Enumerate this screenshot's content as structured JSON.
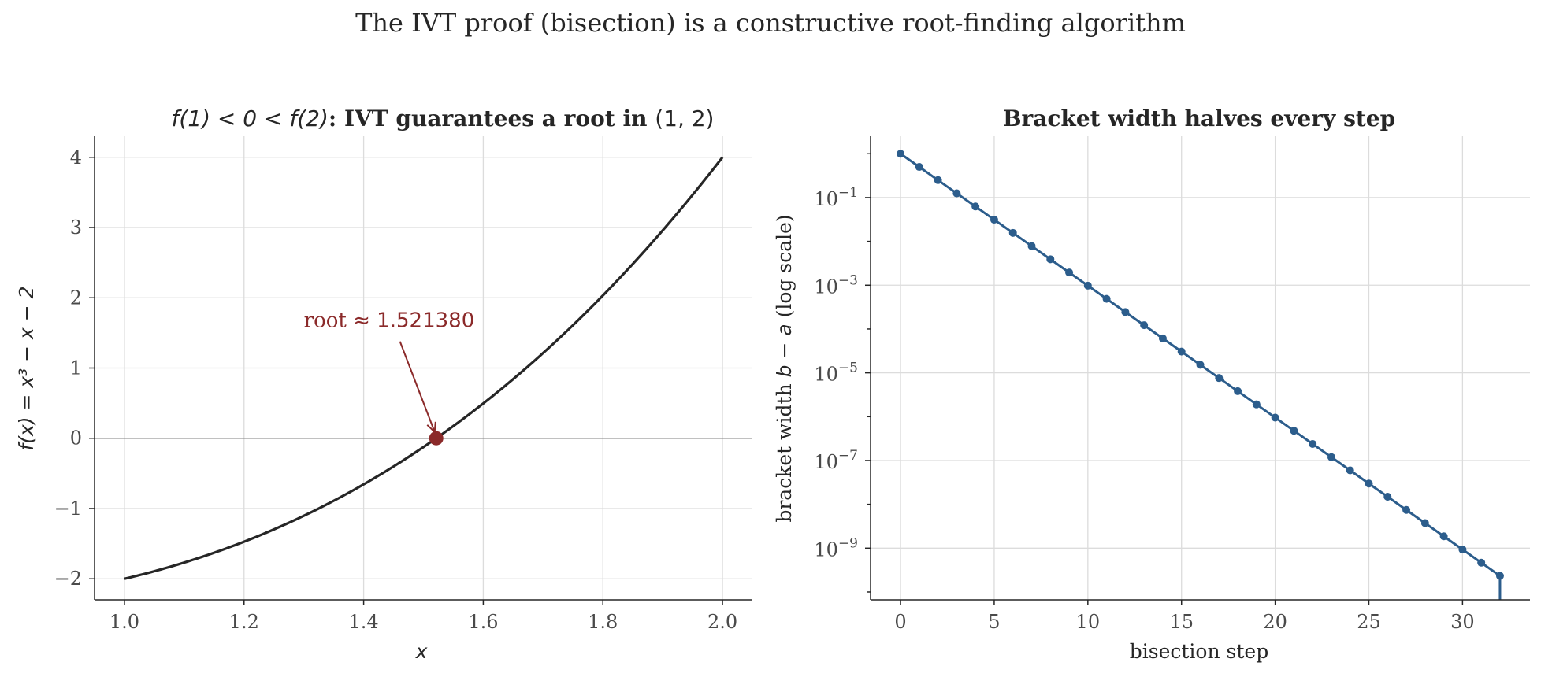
{
  "suptitle": "The IVT proof (bisection) is a constructive root-finding algorithm",
  "colors": {
    "curve": "#262626",
    "root": "#8b2a2a",
    "series": "#2c5d8c",
    "grid": "#dcdcdc"
  },
  "chart_data": [
    {
      "type": "line",
      "title_math_left": "f(1) < 0 < f(2)",
      "title_bold": ": IVT guarantees a root in ",
      "title_math_right": "(1, 2)",
      "xlabel": "x",
      "ylabel": "f(x) = x³ − x − 2",
      "xlim": [
        0.95,
        2.05
      ],
      "ylim": [
        -2.3,
        4.3
      ],
      "xticks": [
        1.0,
        1.2,
        1.4,
        1.6,
        1.8,
        2.0
      ],
      "xtick_labels": [
        "1.0",
        "1.2",
        "1.4",
        "1.6",
        "1.8",
        "2.0"
      ],
      "yticks": [
        -2,
        -1,
        0,
        1,
        2,
        3,
        4
      ],
      "ytick_labels": [
        "−2",
        "−1",
        "0",
        "1",
        "2",
        "3",
        "4"
      ],
      "grid": true,
      "function": "x^3 - x - 2",
      "x_range": [
        1.0,
        2.0
      ],
      "series": [
        {
          "x": [
            1.0,
            1.1,
            1.2,
            1.3,
            1.4,
            1.5,
            1.6,
            1.7,
            1.8,
            1.9,
            2.0
          ],
          "y": [
            -2.0,
            -1.769,
            -1.472,
            -1.103,
            -0.656,
            -0.125,
            0.496,
            1.213,
            2.032,
            2.959,
            4.0
          ]
        }
      ],
      "zero_line": 0,
      "root": {
        "x": 1.52138,
        "y": 0
      },
      "annotation": {
        "prefix": "root ",
        "math": "≈ 1.521380",
        "text_x": 1.3,
        "text_y": 1.58
      }
    },
    {
      "type": "line",
      "title": "Bracket width halves every step",
      "xlabel": "bisection step",
      "ylabel_prefix": "bracket width ",
      "ylabel_math": "b − a",
      "ylabel_suffix": " (log scale)",
      "yscale": "log",
      "xlim": [
        -1.6,
        33.6
      ],
      "ylim_log10": [
        -10.18,
        0.4
      ],
      "xticks": [
        0,
        5,
        10,
        15,
        20,
        25,
        30
      ],
      "xtick_labels": [
        "0",
        "5",
        "10",
        "15",
        "20",
        "25",
        "30"
      ],
      "yticks_exp": [
        -1,
        -3,
        -5,
        -7,
        -9
      ],
      "yticks_minor_exp": [
        0,
        -2,
        -4,
        -6,
        -8,
        -10
      ],
      "ytick_base": "10",
      "ytick_exps": [
        "−1",
        "−3",
        "−5",
        "−7",
        "−9"
      ],
      "grid": true,
      "steps": [
        0,
        1,
        2,
        3,
        4,
        5,
        6,
        7,
        8,
        9,
        10,
        11,
        12,
        13,
        14,
        15,
        16,
        17,
        18,
        19,
        20,
        21,
        22,
        23,
        24,
        25,
        26,
        27,
        28,
        29,
        30,
        31,
        32
      ],
      "values": [
        1,
        0.5,
        0.25,
        0.125,
        0.0625,
        0.03125,
        0.015625,
        0.0078125,
        0.00390625,
        0.001953125,
        0.0009765625,
        0.00048828125,
        0.000244140625,
        0.0001220703125,
        6.103515625e-05,
        3.0517578125e-05,
        1.52587890625e-05,
        7.62939453125e-06,
        3.814697265625e-06,
        1.9073486328125e-06,
        9.5367431640625e-07,
        4.76837158203125e-07,
        2.384185791015625e-07,
        1.1920928955078125e-07,
        5.960464477539063e-08,
        2.9802322387695312e-08,
        1.4901161193847656e-08,
        7.450580596923828e-09,
        3.725290298461914e-09,
        1.862645149230957e-09,
        9.313225746154785e-10,
        4.656612873077393e-10,
        2.3283064365386963e-10
      ]
    }
  ]
}
